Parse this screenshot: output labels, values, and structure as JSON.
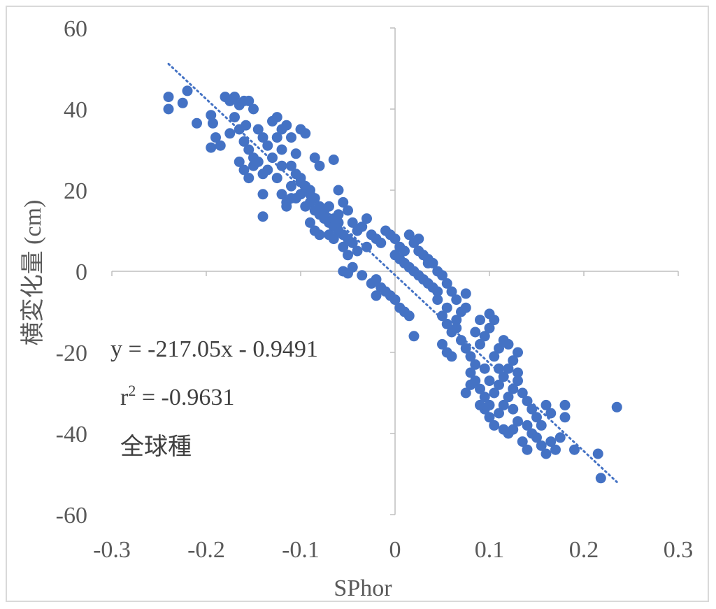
{
  "chart_data": {
    "type": "scatter",
    "xlabel": "SPhor",
    "ylabel": "横変化量 (cm)",
    "xlim": [
      -0.3,
      0.3
    ],
    "ylim": [
      -60,
      60
    ],
    "x_ticks": [
      "-0.3",
      "-0.2",
      "-0.1",
      "0",
      "0.1",
      "0.2",
      "0.3"
    ],
    "y_ticks": [
      "60",
      "40",
      "20",
      "0",
      "-20",
      "-40",
      "-60"
    ],
    "grid": false,
    "marker_color": "#4472c4",
    "trendline": {
      "type": "linear",
      "style": "dotted",
      "slope": -217.05,
      "intercept": -0.9491,
      "x_range": [
        -0.24,
        0.235
      ]
    },
    "annotations": {
      "equation": "y = -217.05x - 0.9491",
      "r2_prefix": "r",
      "r2_sup": "2",
      "r2_value": " = -0.9631",
      "group": "全球種"
    },
    "series": [
      {
        "points": [
          [
            -0.24,
            43
          ],
          [
            -0.24,
            40
          ],
          [
            -0.22,
            44.5
          ],
          [
            -0.225,
            41.5
          ],
          [
            -0.21,
            36.5
          ],
          [
            -0.195,
            38.5
          ],
          [
            -0.193,
            36.5
          ],
          [
            -0.19,
            33
          ],
          [
            -0.195,
            30.5
          ],
          [
            -0.185,
            31
          ],
          [
            -0.18,
            43
          ],
          [
            -0.175,
            42
          ],
          [
            -0.17,
            43
          ],
          [
            -0.165,
            41
          ],
          [
            -0.16,
            42
          ],
          [
            -0.158,
            36
          ],
          [
            -0.155,
            42
          ],
          [
            -0.15,
            40
          ],
          [
            -0.175,
            34
          ],
          [
            -0.17,
            38
          ],
          [
            -0.165,
            35
          ],
          [
            -0.16,
            32
          ],
          [
            -0.155,
            30
          ],
          [
            -0.15,
            28
          ],
          [
            -0.145,
            35
          ],
          [
            -0.14,
            33
          ],
          [
            -0.135,
            31
          ],
          [
            -0.13,
            37
          ],
          [
            -0.125,
            38
          ],
          [
            -0.12,
            35
          ],
          [
            -0.115,
            36
          ],
          [
            -0.11,
            33
          ],
          [
            -0.105,
            29
          ],
          [
            -0.1,
            35
          ],
          [
            -0.095,
            34
          ],
          [
            -0.165,
            27
          ],
          [
            -0.16,
            25
          ],
          [
            -0.155,
            23
          ],
          [
            -0.15,
            26
          ],
          [
            -0.145,
            27
          ],
          [
            -0.14,
            24
          ],
          [
            -0.135,
            25
          ],
          [
            -0.13,
            28
          ],
          [
            -0.125,
            23
          ],
          [
            -0.12,
            26
          ],
          [
            -0.14,
            19
          ],
          [
            -0.14,
            13.5
          ],
          [
            -0.12,
            19
          ],
          [
            -0.115,
            17
          ],
          [
            -0.11,
            21
          ],
          [
            -0.105,
            18
          ],
          [
            -0.1,
            22
          ],
          [
            -0.095,
            16
          ],
          [
            -0.09,
            20
          ],
          [
            -0.085,
            28
          ],
          [
            -0.08,
            26
          ],
          [
            -0.065,
            27.5
          ],
          [
            -0.115,
            16
          ],
          [
            -0.11,
            18
          ],
          [
            -0.1,
            19
          ],
          [
            -0.095,
            20
          ],
          [
            -0.09,
            17
          ],
          [
            -0.085,
            15
          ],
          [
            -0.08,
            14
          ],
          [
            -0.075,
            13
          ],
          [
            -0.07,
            12
          ],
          [
            -0.065,
            11
          ],
          [
            -0.06,
            10
          ],
          [
            -0.055,
            9
          ],
          [
            -0.05,
            8
          ],
          [
            -0.09,
            12
          ],
          [
            -0.085,
            10
          ],
          [
            -0.08,
            9
          ],
          [
            -0.075,
            15
          ],
          [
            -0.07,
            16
          ],
          [
            -0.065,
            13
          ],
          [
            -0.06,
            14
          ],
          [
            -0.055,
            17
          ],
          [
            -0.05,
            15
          ],
          [
            -0.045,
            12
          ],
          [
            -0.06,
            20
          ],
          [
            -0.055,
            6
          ],
          [
            -0.05,
            4
          ],
          [
            -0.045,
            7
          ],
          [
            -0.04,
            10
          ],
          [
            -0.035,
            11
          ],
          [
            -0.03,
            13
          ],
          [
            -0.025,
            9
          ],
          [
            -0.02,
            8
          ],
          [
            -0.015,
            7
          ],
          [
            -0.01,
            10
          ],
          [
            -0.005,
            9
          ],
          [
            0.0,
            8
          ],
          [
            0.005,
            6
          ],
          [
            0.01,
            5
          ],
          [
            -0.055,
            0
          ],
          [
            -0.05,
            -0.5
          ],
          [
            -0.045,
            1
          ],
          [
            -0.035,
            -1
          ],
          [
            -0.025,
            -3
          ],
          [
            -0.02,
            -2
          ],
          [
            -0.015,
            -4
          ],
          [
            -0.01,
            -5
          ],
          [
            -0.005,
            -6
          ],
          [
            0.0,
            -7
          ],
          [
            0.005,
            -9
          ],
          [
            0.01,
            -10
          ],
          [
            0.015,
            -11
          ],
          [
            0.02,
            -16
          ],
          [
            -0.02,
            -6
          ],
          [
            0.0,
            4
          ],
          [
            0.005,
            3
          ],
          [
            0.01,
            2
          ],
          [
            0.015,
            1
          ],
          [
            0.02,
            0
          ],
          [
            0.025,
            -1
          ],
          [
            0.03,
            -2
          ],
          [
            0.035,
            -3
          ],
          [
            0.04,
            -4
          ],
          [
            0.045,
            -5
          ],
          [
            0.02,
            7
          ],
          [
            0.025,
            5
          ],
          [
            0.03,
            4
          ],
          [
            0.035,
            3
          ],
          [
            0.04,
            2
          ],
          [
            0.045,
            0
          ],
          [
            0.05,
            -1
          ],
          [
            0.055,
            -3
          ],
          [
            0.06,
            -5
          ],
          [
            0.065,
            -7
          ],
          [
            0.05,
            -11
          ],
          [
            0.055,
            -13
          ],
          [
            0.06,
            -15
          ],
          [
            0.065,
            -12
          ],
          [
            0.07,
            -10
          ],
          [
            0.075,
            -9
          ],
          [
            0.075,
            -5.5
          ],
          [
            0.05,
            -18
          ],
          [
            0.055,
            -20
          ],
          [
            0.06,
            -21
          ],
          [
            0.07,
            -17
          ],
          [
            0.075,
            -19
          ],
          [
            0.08,
            -21
          ],
          [
            0.085,
            -23
          ],
          [
            0.09,
            -18
          ],
          [
            0.095,
            -16
          ],
          [
            0.1,
            -14
          ],
          [
            0.105,
            -12
          ],
          [
            0.1,
            -10.5
          ],
          [
            0.09,
            -12
          ],
          [
            0.08,
            -25
          ],
          [
            0.085,
            -27
          ],
          [
            0.09,
            -29
          ],
          [
            0.095,
            -31
          ],
          [
            0.1,
            -33
          ],
          [
            0.105,
            -30
          ],
          [
            0.11,
            -28
          ],
          [
            0.115,
            -26
          ],
          [
            0.12,
            -24
          ],
          [
            0.125,
            -22
          ],
          [
            0.13,
            -20
          ],
          [
            0.115,
            -17
          ],
          [
            0.12,
            -18
          ],
          [
            0.11,
            -19
          ],
          [
            0.105,
            -21
          ],
          [
            0.075,
            -30
          ],
          [
            0.08,
            -28
          ],
          [
            0.095,
            -34
          ],
          [
            0.1,
            -36
          ],
          [
            0.105,
            -38
          ],
          [
            0.11,
            -35
          ],
          [
            0.115,
            -33
          ],
          [
            0.12,
            -31
          ],
          [
            0.125,
            -29
          ],
          [
            0.13,
            -27
          ],
          [
            0.135,
            -30
          ],
          [
            0.14,
            -32
          ],
          [
            0.145,
            -34
          ],
          [
            0.15,
            -36
          ],
          [
            0.155,
            -38
          ],
          [
            0.12,
            -40
          ],
          [
            0.125,
            -39
          ],
          [
            0.13,
            -37
          ],
          [
            0.135,
            -42
          ],
          [
            0.14,
            -44
          ],
          [
            0.145,
            -40
          ],
          [
            0.15,
            -41
          ],
          [
            0.155,
            -43
          ],
          [
            0.16,
            -45
          ],
          [
            0.165,
            -42
          ],
          [
            0.16,
            -33
          ],
          [
            0.165,
            -35
          ],
          [
            0.17,
            -44
          ],
          [
            0.175,
            -41
          ],
          [
            0.18,
            -33
          ],
          [
            0.18,
            -36
          ],
          [
            0.19,
            -44
          ],
          [
            0.215,
            -45
          ],
          [
            0.218,
            -51
          ],
          [
            0.235,
            -33.5
          ],
          [
            -0.125,
            33
          ],
          [
            -0.12,
            30
          ],
          [
            -0.11,
            26
          ],
          [
            -0.105,
            24
          ],
          [
            -0.1,
            23
          ],
          [
            -0.095,
            21
          ],
          [
            -0.09,
            19
          ],
          [
            -0.085,
            18
          ],
          [
            -0.08,
            16
          ],
          [
            -0.075,
            14
          ],
          [
            -0.07,
            9
          ],
          [
            -0.065,
            8
          ],
          [
            -0.06,
            12
          ],
          [
            -0.04,
            5
          ],
          [
            -0.03,
            6
          ],
          [
            0.015,
            9
          ],
          [
            0.025,
            8
          ],
          [
            0.035,
            2
          ],
          [
            0.045,
            -7
          ],
          [
            0.055,
            -9
          ],
          [
            0.065,
            -14
          ],
          [
            0.085,
            -15
          ],
          [
            0.095,
            -24
          ],
          [
            0.11,
            -24
          ],
          [
            0.125,
            -34
          ],
          [
            0.14,
            -38
          ],
          [
            0.13,
            -25
          ],
          [
            0.1,
            -27
          ],
          [
            0.09,
            -33
          ],
          [
            0.115,
            -39
          ]
        ]
      }
    ]
  }
}
